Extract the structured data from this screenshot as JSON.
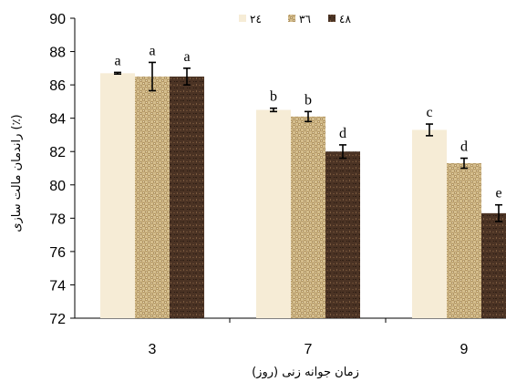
{
  "chart_data": {
    "type": "bar",
    "title": "",
    "xlabel": "زمان جوانه زنی (روز)",
    "ylabel": "راندمان مالت سازی (٪)",
    "categories": [
      "3",
      "7",
      "9"
    ],
    "ylim": [
      72,
      90
    ],
    "yticks": [
      "72",
      "74",
      "76",
      "78",
      "80",
      "82",
      "84",
      "86",
      "88",
      "90"
    ],
    "grid": false,
    "legend_position": "top",
    "series": [
      {
        "name": "٢٤",
        "color": "#f6ecd6",
        "pattern": "plain",
        "values": [
          86.7,
          84.5,
          83.3
        ],
        "errors": [
          0.05,
          0.1,
          0.35
        ],
        "letters": [
          "a",
          "b",
          "c"
        ]
      },
      {
        "name": "٣٦",
        "color": "#cdb483",
        "pattern": "woven",
        "values": [
          86.5,
          84.1,
          81.3
        ],
        "errors": [
          0.85,
          0.3,
          0.3
        ],
        "letters": [
          "a",
          "b",
          "d"
        ]
      },
      {
        "name": "٤٨",
        "color": "#4a3222",
        "pattern": "dark-texture",
        "values": [
          86.5,
          82.0,
          78.3
        ],
        "errors": [
          0.5,
          0.4,
          0.5
        ],
        "letters": [
          "a",
          "d",
          "e"
        ]
      }
    ]
  }
}
